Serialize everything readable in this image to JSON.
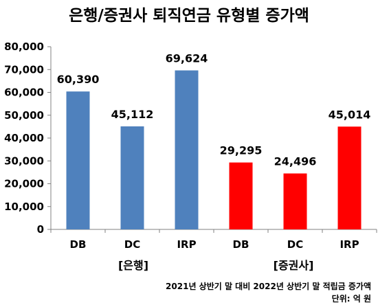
{
  "chart_data": {
    "type": "bar",
    "title": "은행/증권사 퇴직연금 유형별 증가액",
    "categories": [
      "DB",
      "DC",
      "IRP",
      "DB",
      "DC",
      "IRP"
    ],
    "groups": [
      "[은행]",
      "[증권사]"
    ],
    "values": [
      60390,
      45112,
      69624,
      29295,
      24496,
      45014
    ],
    "data_labels": [
      "60,390",
      "45,112",
      "69,624",
      "29,295",
      "24,496",
      "45,014"
    ],
    "yticks": [
      "0",
      "10,000",
      "20,000",
      "30,000",
      "40,000",
      "50,000",
      "60,000",
      "70,000",
      "80,000"
    ],
    "ylim": [
      0,
      80000
    ],
    "grid": false,
    "legend": "none",
    "colors": {
      "bank": "#4f81bd",
      "securities": "#ff0000"
    },
    "footnote_line1": "2021년 상반기 말 대비 2022년 상반기 말 적립금 증가액",
    "footnote_line2": "단위: 억 원"
  }
}
